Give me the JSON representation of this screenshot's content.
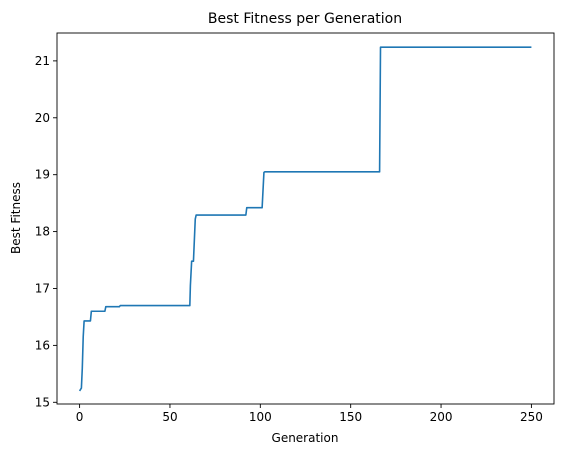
{
  "chart_data": {
    "type": "line",
    "title": "Best Fitness per Generation",
    "xlabel": "Generation",
    "ylabel": "Best Fitness",
    "xlim": [
      -12.5,
      262.5
    ],
    "ylim": [
      14.97,
      21.49
    ],
    "xticks": [
      0,
      50,
      100,
      150,
      200,
      250
    ],
    "yticks": [
      15,
      16,
      17,
      18,
      19,
      20,
      21
    ],
    "grid": false,
    "series_color": "#1f77b4",
    "series": [
      {
        "x": [
          0,
          1,
          1.5,
          2,
          2.5,
          3,
          6,
          6.5,
          14,
          14.5,
          22,
          22.5,
          61,
          61.3,
          62,
          62.5,
          63,
          64,
          64.5,
          92,
          92.5,
          98,
          98.5,
          101,
          102,
          102.5,
          166,
          166.5,
          250
        ],
        "y": [
          15.2,
          15.25,
          15.6,
          16.15,
          16.43,
          16.43,
          16.43,
          16.6,
          16.6,
          16.68,
          16.68,
          16.7,
          16.7,
          17.05,
          17.48,
          17.48,
          17.48,
          18.22,
          18.29,
          18.29,
          18.42,
          18.42,
          18.42,
          18.42,
          19.04,
          19.05,
          19.05,
          21.24,
          21.24
        ]
      }
    ]
  }
}
